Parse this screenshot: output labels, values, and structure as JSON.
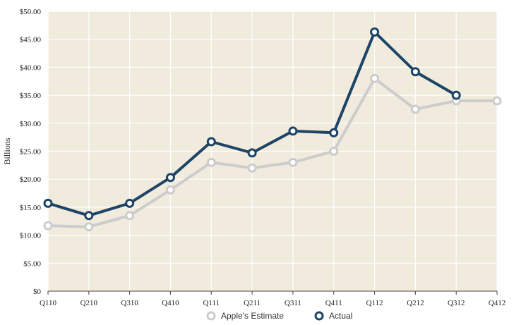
{
  "chart_data": {
    "type": "line",
    "categories": [
      "Q110",
      "Q210",
      "Q310",
      "Q410",
      "Q111",
      "Q211",
      "Q311",
      "Q411",
      "Q112",
      "Q212",
      "Q312",
      "Q412"
    ],
    "ylabel": "Billions",
    "ylim": [
      0,
      50
    ],
    "yticks": [
      "$0",
      "$5.00",
      "$10.00",
      "$15.00",
      "$20.00",
      "$25.00",
      "$30.00",
      "$35.00",
      "$40.00",
      "$45.00",
      "$50.00"
    ],
    "grid": true,
    "legend_position": "bottom",
    "series": [
      {
        "name": "Apple's Estimate",
        "color": "#cccccc",
        "values": [
          11.7,
          11.5,
          13.5,
          18.1,
          23.0,
          22.0,
          23.0,
          25.0,
          38.0,
          32.5,
          34.0,
          34.0
        ]
      },
      {
        "name": "Actual",
        "color": "#1d4466",
        "values": [
          15.7,
          13.5,
          15.7,
          20.3,
          26.7,
          24.7,
          28.6,
          28.3,
          46.3,
          39.2,
          35.0,
          null
        ]
      }
    ],
    "plot_background": "#f0ebdd",
    "grid_color": "#ffffff"
  }
}
